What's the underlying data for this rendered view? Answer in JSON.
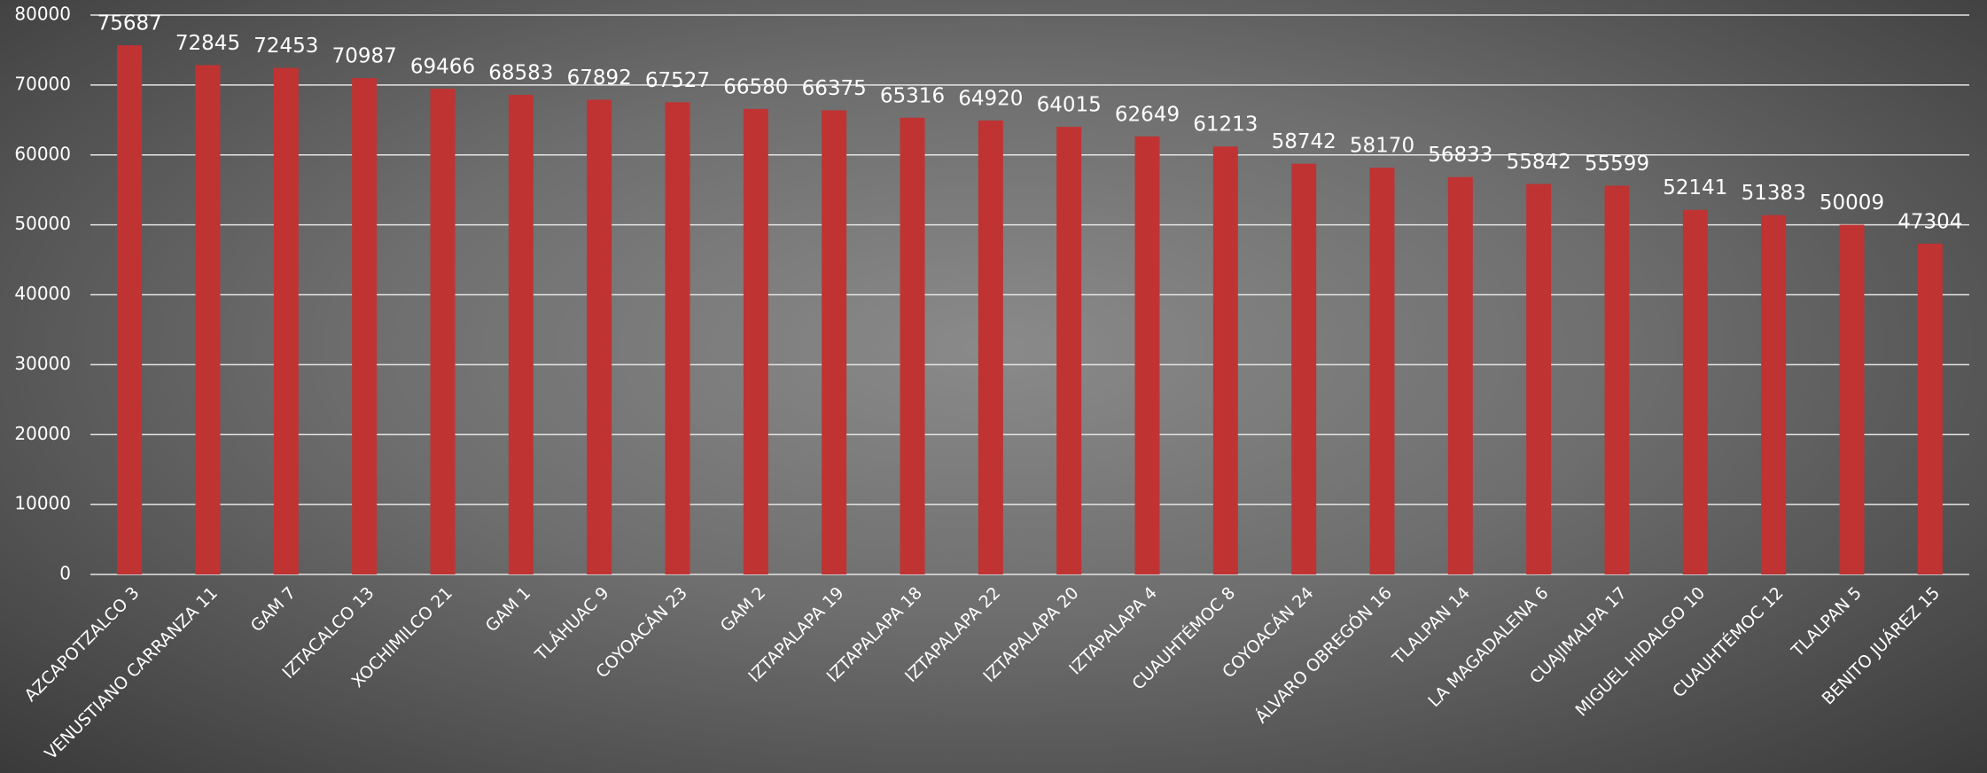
{
  "chart_data": {
    "type": "bar",
    "categories": [
      "AZCAPOTZALCO 3",
      "VENUSTIANO CARRANZA 11",
      "GAM 7",
      "IZTACALCO 13",
      "XOCHIMILCO 21",
      "GAM 1",
      "TLÁHUAC 9",
      "COYOACÁN 23",
      "GAM 2",
      "IZTAPALAPA 19",
      "IZTAPALAPA 18",
      "IZTAPALAPA 22",
      "IZTAPALAPA 20",
      "IZTAPALAPA 4",
      "CUAUHTÉMOC 8",
      "COYOACÁN 24",
      "ÁLVARO OBREGÓN 16",
      "TLALPAN 14",
      "LA MAGADALENA 6",
      "CUAJIMALPA 17",
      "MIGUEL HIDALGO 10",
      "CUAUHTÉMOC 12",
      "TLALPAN 5",
      "BENITO JUÁREZ 15"
    ],
    "values": [
      75687,
      72845,
      72453,
      70987,
      69466,
      68583,
      67892,
      67527,
      66580,
      66375,
      65316,
      64920,
      64015,
      62649,
      61213,
      58742,
      58170,
      56833,
      55842,
      55599,
      52141,
      51383,
      50009,
      47304
    ],
    "color": "#c03333",
    "ylim": [
      0,
      80000
    ],
    "yticks": [
      0,
      10000,
      20000,
      30000,
      40000,
      50000,
      60000,
      70000,
      80000
    ],
    "grid": true
  }
}
